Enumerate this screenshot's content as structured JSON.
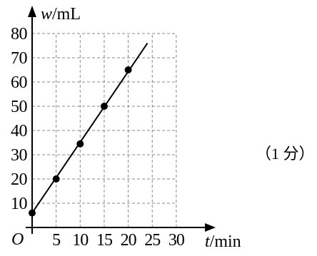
{
  "chart_data": {
    "type": "line",
    "x_axis_var": "t",
    "x_axis_unit": "/min",
    "y_axis_var": "w",
    "y_axis_unit": "/mL",
    "origin_label": "O",
    "x_ticks": [
      5,
      10,
      15,
      20,
      25,
      30
    ],
    "y_ticks": [
      10,
      20,
      30,
      40,
      50,
      60,
      70,
      80
    ],
    "xlim": [
      0,
      30
    ],
    "ylim": [
      0,
      80
    ],
    "grid": true,
    "points": [
      {
        "x": 0,
        "y": 6
      },
      {
        "x": 5,
        "y": 20
      },
      {
        "x": 10,
        "y": 34.5
      },
      {
        "x": 15,
        "y": 50
      },
      {
        "x": 20,
        "y": 65
      }
    ],
    "fit_line": {
      "x": [
        0,
        24
      ],
      "y": [
        6,
        76
      ]
    }
  },
  "annotation": {
    "score_text": "（1 分）"
  }
}
